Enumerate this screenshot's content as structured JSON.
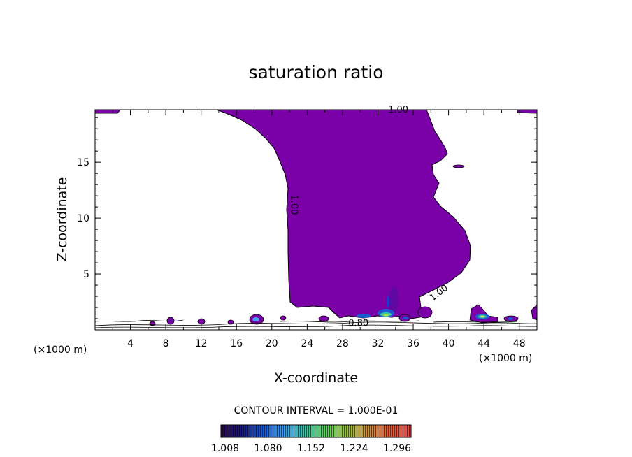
{
  "chart_data": {
    "type": "contour",
    "title": "saturation ratio",
    "xlabel": "X-coordinate",
    "ylabel": "Z-coordinate",
    "x_unit": "(×1000 m)",
    "y_unit": "(×1000 m)",
    "xlim": [
      0,
      50
    ],
    "ylim": [
      0,
      19.7
    ],
    "x_ticks": [
      4,
      8,
      12,
      16,
      20,
      24,
      28,
      32,
      36,
      40,
      44,
      48
    ],
    "y_ticks": [
      5,
      10,
      15
    ],
    "contour_interval_label": "CONTOUR INTERVAL = 1.000E-01",
    "contour_labels": [
      {
        "text": "1.00",
        "x": 34.3,
        "y": 19.7
      },
      {
        "text": "1.00",
        "x": 22.5,
        "y": 11.2
      },
      {
        "text": "1.00",
        "x": 38.9,
        "y": 3.3
      },
      {
        "text": "0.80",
        "x": 29.8,
        "y": 0.6
      }
    ],
    "supersaturated_region_color": "#7a00a8",
    "colorbar": {
      "tick_labels": [
        "1.008",
        "1.080",
        "1.152",
        "1.224",
        "1.296"
      ],
      "colors": [
        "#2a0a4a",
        "#1a1a7a",
        "#1a5ad0",
        "#40a0f0",
        "#40c0a0",
        "#60d060",
        "#a0c040",
        "#d09040",
        "#e06040",
        "#e05050"
      ]
    }
  }
}
